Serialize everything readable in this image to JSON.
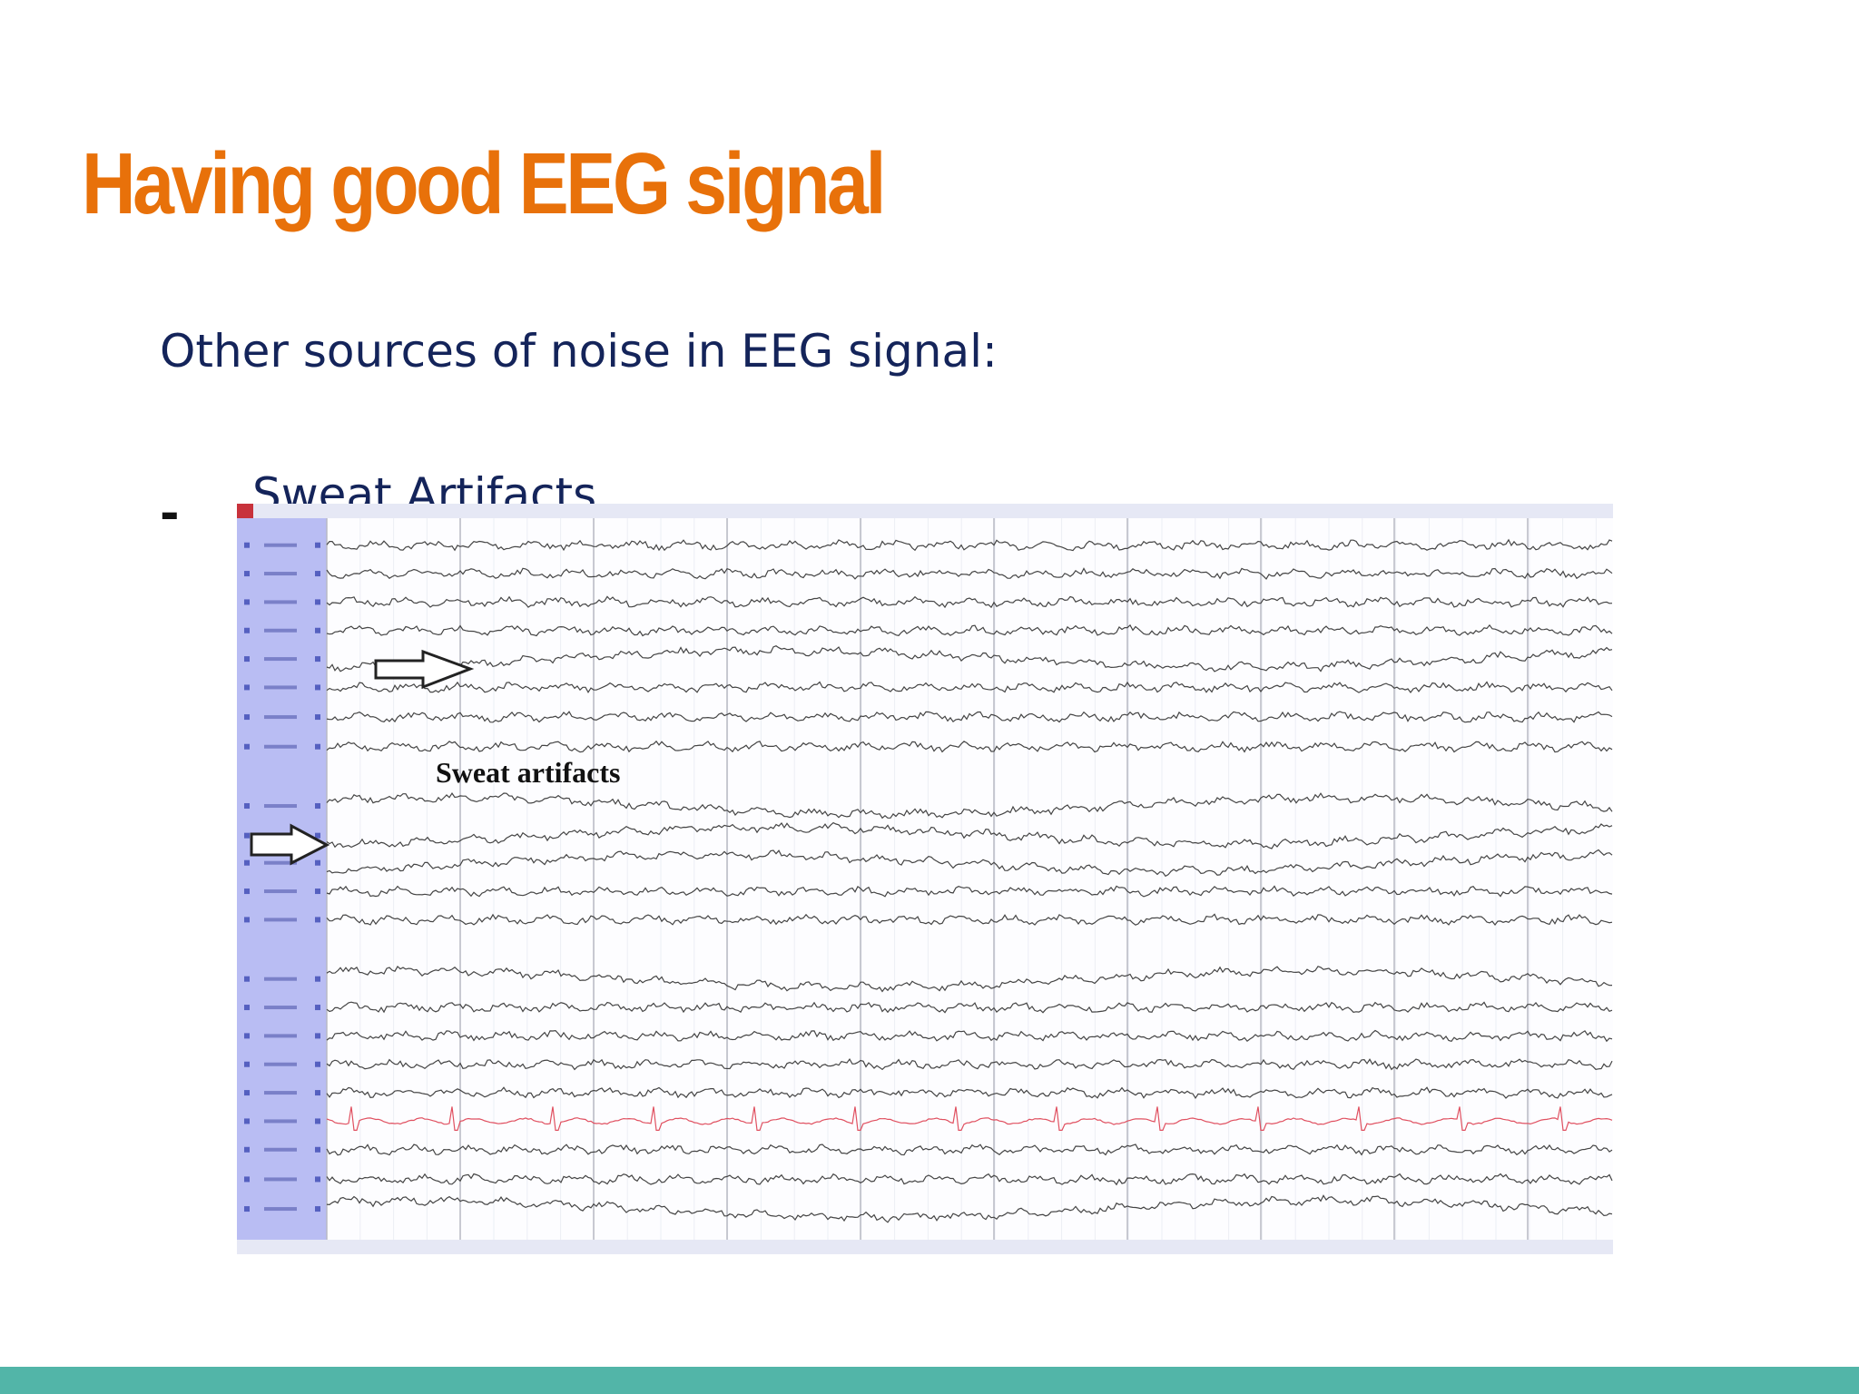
{
  "title": "Having good EEG signal",
  "intro": "Other sources of noise in EEG signal:",
  "bullets": [
    {
      "marker": "-",
      "text": "Sweat Artifacts"
    }
  ],
  "figure": {
    "annotation": "Sweat artifacts"
  }
}
